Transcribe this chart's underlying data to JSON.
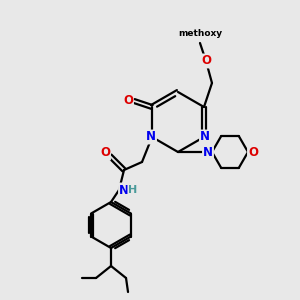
{
  "bg_color": "#e8e8e8",
  "atom_colors": {
    "C": "#000000",
    "N": "#0000ee",
    "O": "#dd0000",
    "H": "#4a9a9a"
  },
  "bond_color": "#000000",
  "bond_width": 1.6,
  "figsize": [
    3.0,
    3.0
  ],
  "dpi": 100
}
